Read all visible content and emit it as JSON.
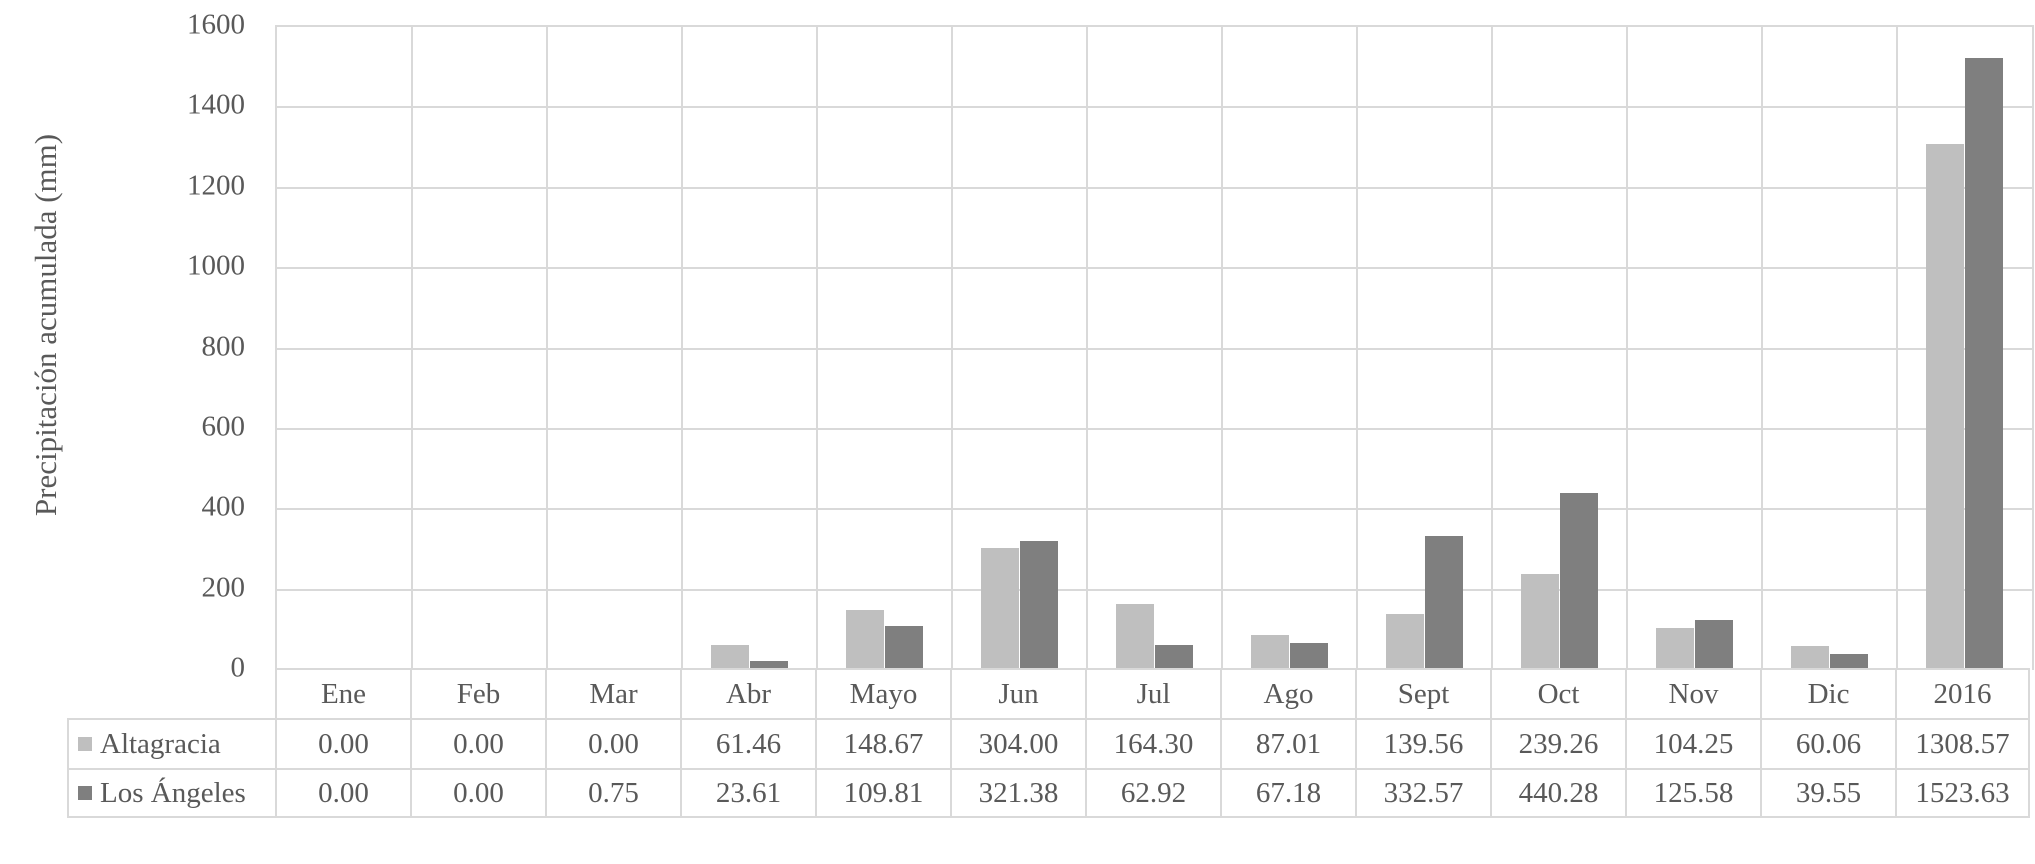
{
  "chart_data": {
    "type": "bar",
    "title": "",
    "ylabel": "Precipitación acumulada (mm)",
    "xlabel": "",
    "categories": [
      "Ene",
      "Feb",
      "Mar",
      "Abr",
      "Mayo",
      "Jun",
      "Jul",
      "Ago",
      "Sept",
      "Oct",
      "Nov",
      "Dic",
      "2016"
    ],
    "series": [
      {
        "name": "Altagracia",
        "color": "#BFBFBF",
        "values": [
          0.0,
          0.0,
          0.0,
          61.46,
          148.67,
          304.0,
          164.3,
          87.01,
          139.56,
          239.26,
          104.25,
          60.06,
          1308.57
        ]
      },
      {
        "name": "Los Ángeles",
        "color": "#7F7F7F",
        "values": [
          0.0,
          0.0,
          0.75,
          23.61,
          109.81,
          321.38,
          62.92,
          67.18,
          332.57,
          440.28,
          125.58,
          39.55,
          1523.63
        ]
      }
    ],
    "ylim": [
      0,
      1600
    ],
    "ytick_step": 200,
    "yticks": [
      "0",
      "200",
      "400",
      "600",
      "800",
      "1000",
      "1200",
      "1400",
      "1600"
    ],
    "grid": true,
    "gridline_color": "#D9D9D9",
    "border_color": "#D9D9D9",
    "text_color": "#595959",
    "legend_position": "data-table-left",
    "value_decimals": 2
  }
}
